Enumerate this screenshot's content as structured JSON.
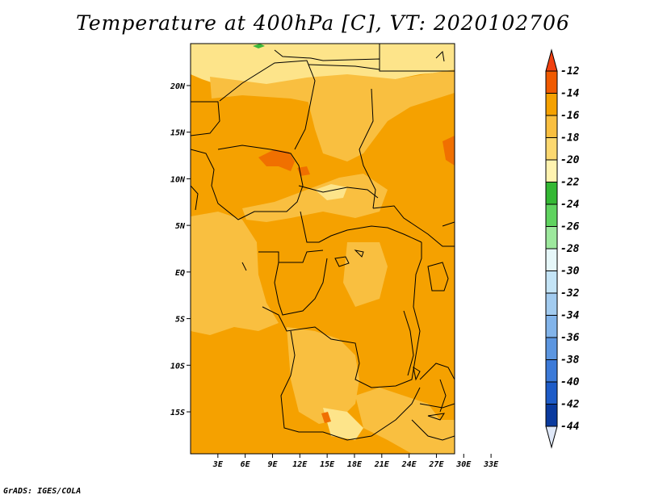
{
  "title": "Temperature at 400hPa [C], VT: 2020102706",
  "credit": "GrADS: IGES/COLA",
  "map": {
    "lat_range": [
      -19.5,
      24.5
    ],
    "lon_range": [
      0,
      29
    ],
    "lat_ticks": [
      {
        "value": 20,
        "label": "20N"
      },
      {
        "value": 15,
        "label": "15N"
      },
      {
        "value": 10,
        "label": "10N"
      },
      {
        "value": 5,
        "label": "5N"
      },
      {
        "value": 0,
        "label": "EQ"
      },
      {
        "value": -5,
        "label": "5S"
      },
      {
        "value": -10,
        "label": "10S"
      },
      {
        "value": -15,
        "label": "15S"
      }
    ],
    "lon_ticks": [
      {
        "value": 3,
        "label": "3E"
      },
      {
        "value": 6,
        "label": "6E"
      },
      {
        "value": 9,
        "label": "9E"
      },
      {
        "value": 12,
        "label": "12E"
      },
      {
        "value": 15,
        "label": "15E"
      },
      {
        "value": 18,
        "label": "18E"
      },
      {
        "value": 21,
        "label": "21E"
      },
      {
        "value": 24,
        "label": "24E"
      },
      {
        "value": 27,
        "label": "27E"
      },
      {
        "value": 30,
        "label": "30E"
      },
      {
        "value": 33,
        "label": "33E"
      }
    ],
    "colors": {
      "dominant": "#f5a100",
      "light": "#f9bf40",
      "pale": "#fde48a",
      "warm": "#f07000",
      "green": "#3cb83c"
    }
  },
  "colorbar": {
    "labels": [
      "-12",
      "-14",
      "-16",
      "-18",
      "-20",
      "-22",
      "-24",
      "-26",
      "-28",
      "-30",
      "-32",
      "-34",
      "-36",
      "-38",
      "-40",
      "-42",
      "-44"
    ],
    "colors": [
      "#f05a00",
      "#f5a100",
      "#f9bf40",
      "#fcd870",
      "#fff3b0",
      "#34b834",
      "#5fd35f",
      "#9de89d",
      "#e6f7f9",
      "#c4e4f6",
      "#a2cbef",
      "#82b4ea",
      "#5c96e0",
      "#3c7ad8",
      "#1e5cc8",
      "#0a3a9e"
    ],
    "top_color": "#f04010",
    "bottom_color": "#dfe8f8"
  }
}
